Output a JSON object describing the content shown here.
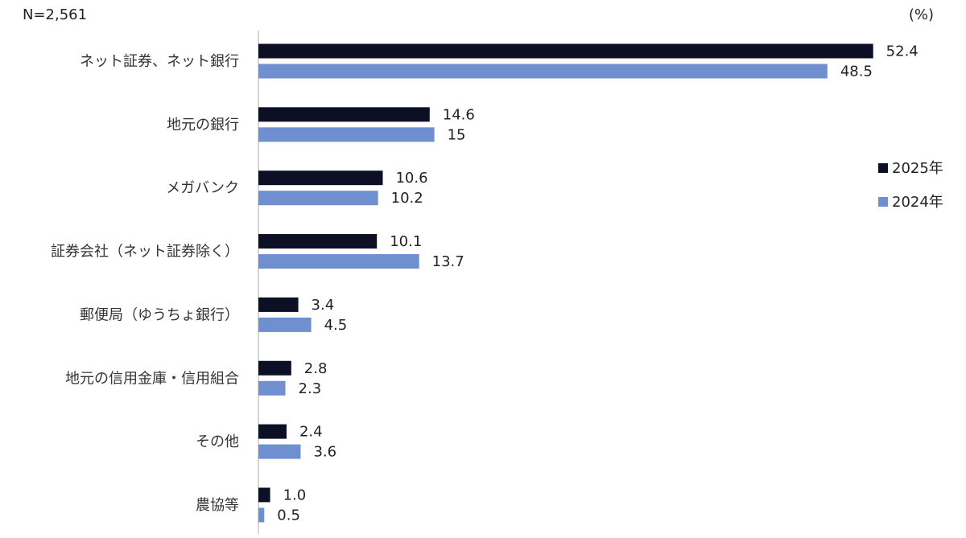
{
  "header": {
    "sample_label": "N=2,561",
    "unit_label": "(%)"
  },
  "chart_data": {
    "type": "bar",
    "orientation": "horizontal",
    "categories": [
      "ネット証券、ネット銀行",
      "地元の銀行",
      "メガバンク",
      "証券会社（ネット証券除く）",
      "郵便局（ゆうちょ銀行）",
      "地元の信用金庫・信用組合",
      "その他",
      "農協等"
    ],
    "series": [
      {
        "name": "2025年",
        "color": "#0d1024",
        "values": [
          52.4,
          14.6,
          10.6,
          10.1,
          3.4,
          2.8,
          2.4,
          1.0
        ],
        "labels": [
          "52.4",
          "14.6",
          "10.6",
          "10.1",
          "3.4",
          "2.8",
          "2.4",
          "1.0"
        ]
      },
      {
        "name": "2024年",
        "color": "#6f8fd1",
        "values": [
          48.5,
          15,
          10.2,
          13.7,
          4.5,
          2.3,
          3.6,
          0.5
        ],
        "labels": [
          "48.5",
          "15",
          "10.2",
          "13.7",
          "4.5",
          "2.3",
          "3.6",
          "0.5"
        ]
      }
    ],
    "xlim": [
      0,
      57.5
    ],
    "title": "",
    "xlabel": "",
    "ylabel": "",
    "grid": false,
    "legend_position": "right"
  }
}
